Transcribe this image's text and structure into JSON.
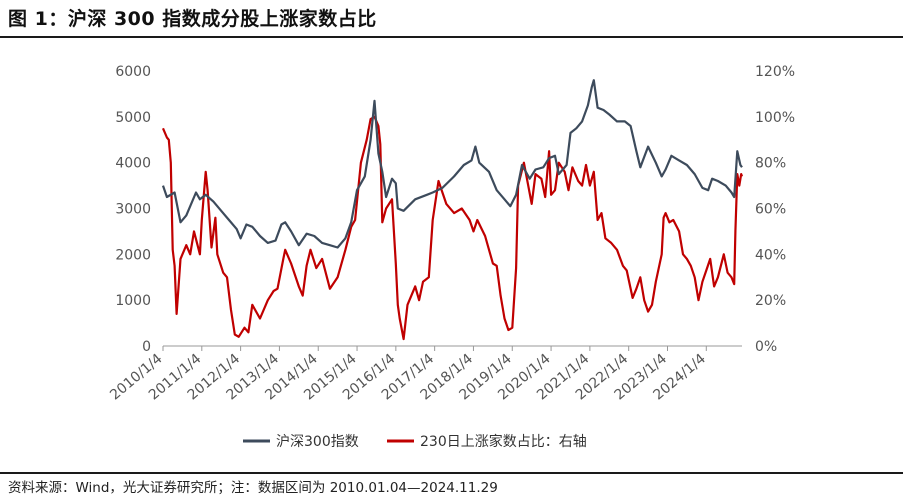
{
  "title": "图 1：沪深 300 指数成分股上涨家数占比",
  "source": "资料来源：Wind，光大证券研究所；注：数据区间为 2010.01.04—2024.11.29",
  "colors": {
    "index_line": "#3d4b5c",
    "ratio_line": "#c00000"
  },
  "chart_data": {
    "type": "line",
    "title": "沪深 300 指数成分股上涨家数占比",
    "x_tick_labels": [
      "2010/1/4",
      "2011/1/4",
      "2012/1/4",
      "2013/1/4",
      "2014/1/4",
      "2015/1/4",
      "2016/1/4",
      "2017/1/4",
      "2018/1/4",
      "2019/1/4",
      "2020/1/4",
      "2021/1/4",
      "2022/1/4",
      "2023/1/4",
      "2024/1/4"
    ],
    "x_range": [
      2010.0,
      2024.92
    ],
    "y_left": {
      "range": [
        0,
        6000
      ],
      "ticks": [
        "0",
        "1000",
        "2000",
        "3000",
        "4000",
        "5000",
        "6000"
      ]
    },
    "y_right": {
      "range": [
        0,
        120
      ],
      "ticks": [
        "0%",
        "20%",
        "40%",
        "60%",
        "80%",
        "100%",
        "120%"
      ]
    },
    "legend": [
      "沪深300指数",
      "230日上涨家数占比：右轴"
    ],
    "series": [
      {
        "name": "沪深300指数",
        "axis": "left",
        "points": [
          [
            2010.0,
            3500
          ],
          [
            2010.1,
            3250
          ],
          [
            2010.3,
            3350
          ],
          [
            2010.45,
            2700
          ],
          [
            2010.6,
            2850
          ],
          [
            2010.85,
            3350
          ],
          [
            2010.95,
            3200
          ],
          [
            2011.1,
            3300
          ],
          [
            2011.3,
            3150
          ],
          [
            2011.5,
            2950
          ],
          [
            2011.7,
            2750
          ],
          [
            2011.9,
            2550
          ],
          [
            2012.0,
            2350
          ],
          [
            2012.15,
            2650
          ],
          [
            2012.3,
            2600
          ],
          [
            2012.5,
            2400
          ],
          [
            2012.7,
            2250
          ],
          [
            2012.9,
            2300
          ],
          [
            2013.05,
            2650
          ],
          [
            2013.15,
            2700
          ],
          [
            2013.3,
            2500
          ],
          [
            2013.5,
            2200
          ],
          [
            2013.7,
            2450
          ],
          [
            2013.9,
            2400
          ],
          [
            2014.1,
            2250
          ],
          [
            2014.3,
            2200
          ],
          [
            2014.5,
            2150
          ],
          [
            2014.7,
            2350
          ],
          [
            2014.85,
            2700
          ],
          [
            2015.0,
            3400
          ],
          [
            2015.2,
            3700
          ],
          [
            2015.35,
            4500
          ],
          [
            2015.45,
            5350
          ],
          [
            2015.55,
            4200
          ],
          [
            2015.65,
            3800
          ],
          [
            2015.75,
            3250
          ],
          [
            2015.9,
            3650
          ],
          [
            2016.0,
            3550
          ],
          [
            2016.05,
            3000
          ],
          [
            2016.2,
            2950
          ],
          [
            2016.5,
            3200
          ],
          [
            2016.8,
            3300
          ],
          [
            2016.95,
            3350
          ],
          [
            2017.2,
            3450
          ],
          [
            2017.5,
            3700
          ],
          [
            2017.75,
            3950
          ],
          [
            2017.95,
            4050
          ],
          [
            2018.05,
            4350
          ],
          [
            2018.15,
            4000
          ],
          [
            2018.4,
            3800
          ],
          [
            2018.6,
            3400
          ],
          [
            2018.8,
            3200
          ],
          [
            2018.95,
            3050
          ],
          [
            2019.1,
            3300
          ],
          [
            2019.25,
            3950
          ],
          [
            2019.45,
            3650
          ],
          [
            2019.6,
            3850
          ],
          [
            2019.8,
            3900
          ],
          [
            2019.95,
            4100
          ],
          [
            2020.1,
            4150
          ],
          [
            2020.2,
            3750
          ],
          [
            2020.4,
            3950
          ],
          [
            2020.5,
            4650
          ],
          [
            2020.65,
            4750
          ],
          [
            2020.8,
            4900
          ],
          [
            2020.95,
            5250
          ],
          [
            2021.05,
            5650
          ],
          [
            2021.1,
            5800
          ],
          [
            2021.2,
            5200
          ],
          [
            2021.35,
            5150
          ],
          [
            2021.5,
            5050
          ],
          [
            2021.7,
            4900
          ],
          [
            2021.9,
            4900
          ],
          [
            2022.05,
            4800
          ],
          [
            2022.2,
            4250
          ],
          [
            2022.3,
            3900
          ],
          [
            2022.5,
            4350
          ],
          [
            2022.7,
            4000
          ],
          [
            2022.85,
            3700
          ],
          [
            2022.95,
            3850
          ],
          [
            2023.1,
            4150
          ],
          [
            2023.3,
            4050
          ],
          [
            2023.5,
            3950
          ],
          [
            2023.7,
            3750
          ],
          [
            2023.9,
            3450
          ],
          [
            2024.05,
            3400
          ],
          [
            2024.15,
            3650
          ],
          [
            2024.3,
            3600
          ],
          [
            2024.5,
            3500
          ],
          [
            2024.65,
            3350
          ],
          [
            2024.72,
            3250
          ],
          [
            2024.8,
            4250
          ],
          [
            2024.88,
            3950
          ],
          [
            2024.92,
            3900
          ]
        ]
      },
      {
        "name": "230日上涨家数占比",
        "axis": "right",
        "points": [
          [
            2010.0,
            95
          ],
          [
            2010.1,
            91
          ],
          [
            2010.15,
            90
          ],
          [
            2010.2,
            80
          ],
          [
            2010.25,
            42
          ],
          [
            2010.3,
            35
          ],
          [
            2010.35,
            14
          ],
          [
            2010.45,
            38
          ],
          [
            2010.6,
            44
          ],
          [
            2010.7,
            40
          ],
          [
            2010.8,
            50
          ],
          [
            2010.95,
            40
          ],
          [
            2011.0,
            55
          ],
          [
            2011.1,
            76
          ],
          [
            2011.15,
            68
          ],
          [
            2011.25,
            43
          ],
          [
            2011.35,
            56
          ],
          [
            2011.4,
            40
          ],
          [
            2011.55,
            32
          ],
          [
            2011.65,
            30
          ],
          [
            2011.75,
            16
          ],
          [
            2011.85,
            5
          ],
          [
            2011.95,
            4
          ],
          [
            2012.1,
            8
          ],
          [
            2012.2,
            6
          ],
          [
            2012.3,
            18
          ],
          [
            2012.5,
            12
          ],
          [
            2012.7,
            20
          ],
          [
            2012.85,
            24
          ],
          [
            2012.95,
            25
          ],
          [
            2013.1,
            38
          ],
          [
            2013.15,
            42
          ],
          [
            2013.3,
            36
          ],
          [
            2013.5,
            26
          ],
          [
            2013.6,
            22
          ],
          [
            2013.7,
            35
          ],
          [
            2013.8,
            42
          ],
          [
            2013.95,
            34
          ],
          [
            2014.1,
            38
          ],
          [
            2014.3,
            25
          ],
          [
            2014.5,
            30
          ],
          [
            2014.7,
            42
          ],
          [
            2014.85,
            52
          ],
          [
            2014.95,
            55
          ],
          [
            2015.1,
            80
          ],
          [
            2015.25,
            90
          ],
          [
            2015.35,
            99
          ],
          [
            2015.45,
            100
          ],
          [
            2015.55,
            96
          ],
          [
            2015.6,
            88
          ],
          [
            2015.65,
            54
          ],
          [
            2015.75,
            60
          ],
          [
            2015.9,
            64
          ],
          [
            2016.0,
            36
          ],
          [
            2016.05,
            18
          ],
          [
            2016.1,
            12
          ],
          [
            2016.2,
            3
          ],
          [
            2016.3,
            18
          ],
          [
            2016.5,
            26
          ],
          [
            2016.6,
            20
          ],
          [
            2016.7,
            28
          ],
          [
            2016.85,
            30
          ],
          [
            2016.95,
            55
          ],
          [
            2017.1,
            72
          ],
          [
            2017.3,
            62
          ],
          [
            2017.5,
            58
          ],
          [
            2017.7,
            60
          ],
          [
            2017.9,
            55
          ],
          [
            2018.0,
            50
          ],
          [
            2018.1,
            55
          ],
          [
            2018.3,
            48
          ],
          [
            2018.5,
            36
          ],
          [
            2018.6,
            35
          ],
          [
            2018.7,
            22
          ],
          [
            2018.8,
            12
          ],
          [
            2018.9,
            7
          ],
          [
            2019.0,
            8
          ],
          [
            2019.1,
            34
          ],
          [
            2019.15,
            70
          ],
          [
            2019.3,
            80
          ],
          [
            2019.5,
            62
          ],
          [
            2019.6,
            75
          ],
          [
            2019.75,
            73
          ],
          [
            2019.85,
            65
          ],
          [
            2019.95,
            85
          ],
          [
            2020.0,
            66
          ],
          [
            2020.1,
            68
          ],
          [
            2020.2,
            80
          ],
          [
            2020.35,
            76
          ],
          [
            2020.45,
            68
          ],
          [
            2020.55,
            78
          ],
          [
            2020.7,
            72
          ],
          [
            2020.8,
            70
          ],
          [
            2020.9,
            79
          ],
          [
            2021.0,
            70
          ],
          [
            2021.1,
            76
          ],
          [
            2021.2,
            55
          ],
          [
            2021.3,
            58
          ],
          [
            2021.4,
            47
          ],
          [
            2021.55,
            45
          ],
          [
            2021.7,
            42
          ],
          [
            2021.85,
            35
          ],
          [
            2021.95,
            33
          ],
          [
            2022.1,
            21
          ],
          [
            2022.2,
            25
          ],
          [
            2022.3,
            30
          ],
          [
            2022.4,
            20
          ],
          [
            2022.5,
            15
          ],
          [
            2022.6,
            18
          ],
          [
            2022.7,
            28
          ],
          [
            2022.85,
            40
          ],
          [
            2022.9,
            56
          ],
          [
            2022.95,
            58
          ],
          [
            2023.05,
            54
          ],
          [
            2023.15,
            55
          ],
          [
            2023.3,
            50
          ],
          [
            2023.4,
            40
          ],
          [
            2023.5,
            38
          ],
          [
            2023.6,
            35
          ],
          [
            2023.7,
            30
          ],
          [
            2023.8,
            20
          ],
          [
            2023.9,
            28
          ],
          [
            2024.0,
            33
          ],
          [
            2024.1,
            38
          ],
          [
            2024.2,
            26
          ],
          [
            2024.3,
            30
          ],
          [
            2024.45,
            40
          ],
          [
            2024.55,
            32
          ],
          [
            2024.65,
            30
          ],
          [
            2024.72,
            27
          ],
          [
            2024.75,
            50
          ],
          [
            2024.8,
            75
          ],
          [
            2024.85,
            70
          ],
          [
            2024.9,
            75
          ],
          [
            2024.92,
            74
          ]
        ]
      }
    ]
  }
}
